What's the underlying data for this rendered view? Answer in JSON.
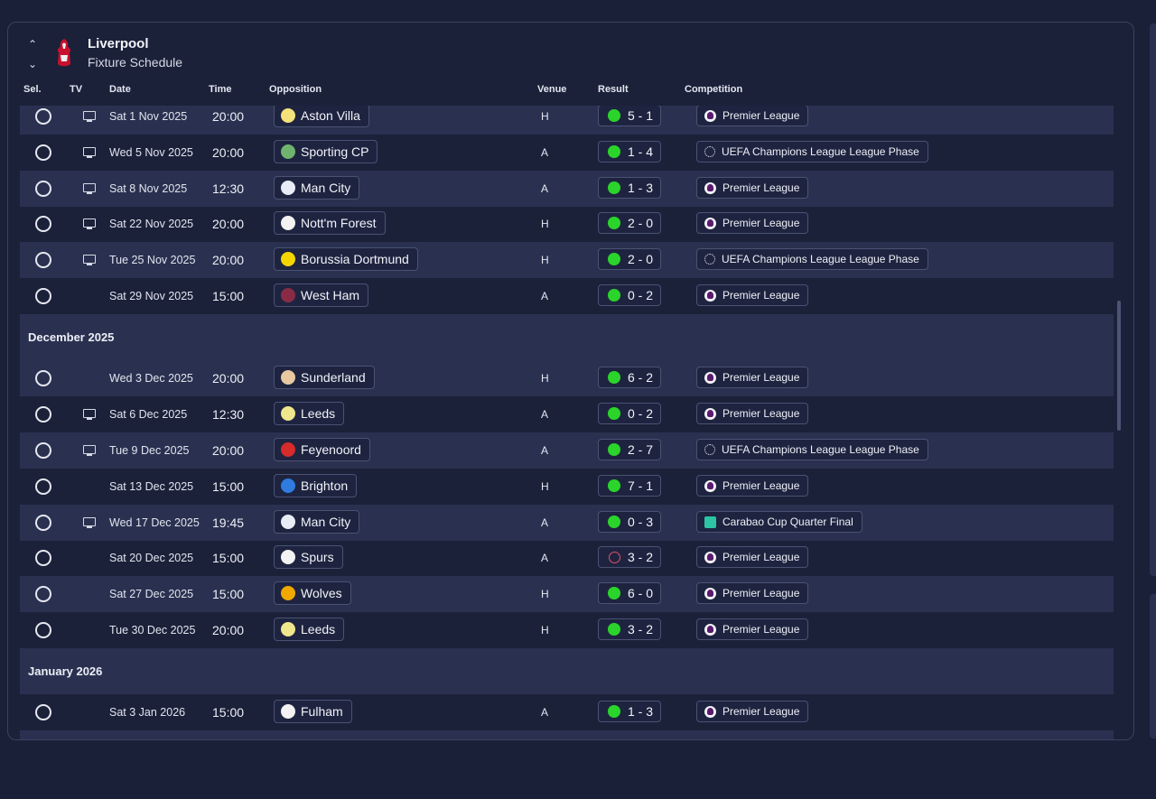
{
  "header": {
    "club_name": "Liverpool",
    "subtitle": "Fixture Schedule"
  },
  "columns": {
    "sel": "Sel.",
    "tv": "TV",
    "date": "Date",
    "time": "Time",
    "opposition": "Opposition",
    "venue": "Venue",
    "result": "Result",
    "competition": "Competition"
  },
  "months": {
    "december": "December 2025",
    "january": "January 2026"
  },
  "colors": {
    "win": "#2bd42b",
    "loss": "#e0506a",
    "background": "#1a2038",
    "row_alt": "#2a3150"
  },
  "fixtures": [
    {
      "tv": true,
      "date": "Sat 1 Nov 2025",
      "time": "20:00",
      "opposition": "Aston Villa",
      "venue": "H",
      "result": "5 - 1",
      "outcome": "win",
      "competition": "Premier League",
      "comp_icon": "premier-league-icon",
      "crest": "#f4e27a"
    },
    {
      "tv": true,
      "date": "Wed 5 Nov 2025",
      "time": "20:00",
      "opposition": "Sporting CP",
      "venue": "A",
      "result": "1 - 4",
      "outcome": "win",
      "competition": "UEFA Champions League League Phase",
      "comp_icon": "champions-league-icon",
      "crest": "#6fb36f"
    },
    {
      "tv": true,
      "date": "Sat 8 Nov 2025",
      "time": "12:30",
      "opposition": "Man City",
      "venue": "A",
      "result": "1 - 3",
      "outcome": "win",
      "competition": "Premier League",
      "comp_icon": "premier-league-icon",
      "crest": "#e8ecf4"
    },
    {
      "tv": true,
      "date": "Sat 22 Nov 2025",
      "time": "20:00",
      "opposition": "Nott'm Forest",
      "venue": "H",
      "result": "2 - 0",
      "outcome": "win",
      "competition": "Premier League",
      "comp_icon": "premier-league-icon",
      "crest": "#f2f2f2"
    },
    {
      "tv": true,
      "date": "Tue 25 Nov 2025",
      "time": "20:00",
      "opposition": "Borussia Dortmund",
      "venue": "H",
      "result": "2 - 0",
      "outcome": "win",
      "competition": "UEFA Champions League League Phase",
      "comp_icon": "champions-league-icon",
      "crest": "#f4d500"
    },
    {
      "tv": false,
      "date": "Sat 29 Nov 2025",
      "time": "15:00",
      "opposition": "West Ham",
      "venue": "A",
      "result": "0 - 2",
      "outcome": "win",
      "competition": "Premier League",
      "comp_icon": "premier-league-icon",
      "crest": "#8a2b45"
    },
    {
      "tv": false,
      "date": "Wed 3 Dec 2025",
      "time": "20:00",
      "opposition": "Sunderland",
      "venue": "H",
      "result": "6 - 2",
      "outcome": "win",
      "competition": "Premier League",
      "comp_icon": "premier-league-icon",
      "crest": "#e8c9a0"
    },
    {
      "tv": true,
      "date": "Sat 6 Dec 2025",
      "time": "12:30",
      "opposition": "Leeds",
      "venue": "A",
      "result": "0 - 2",
      "outcome": "win",
      "competition": "Premier League",
      "comp_icon": "premier-league-icon",
      "crest": "#f0e68c"
    },
    {
      "tv": true,
      "date": "Tue 9 Dec 2025",
      "time": "20:00",
      "opposition": "Feyenoord",
      "venue": "A",
      "result": "2 - 7",
      "outcome": "win",
      "competition": "UEFA Champions League League Phase",
      "comp_icon": "champions-league-icon",
      "crest": "#d62b2b"
    },
    {
      "tv": false,
      "date": "Sat 13 Dec 2025",
      "time": "15:00",
      "opposition": "Brighton",
      "venue": "H",
      "result": "7 - 1",
      "outcome": "win",
      "competition": "Premier League",
      "comp_icon": "premier-league-icon",
      "crest": "#2f7be0"
    },
    {
      "tv": true,
      "date": "Wed 17 Dec 2025",
      "time": "19:45",
      "opposition": "Man City",
      "venue": "A",
      "result": "0 - 3",
      "outcome": "win",
      "competition": "Carabao Cup Quarter Final",
      "comp_icon": "carabao-cup-icon",
      "crest": "#e8ecf4"
    },
    {
      "tv": false,
      "date": "Sat 20 Dec 2025",
      "time": "15:00",
      "opposition": "Spurs",
      "venue": "A",
      "result": "3 - 2",
      "outcome": "loss",
      "competition": "Premier League",
      "comp_icon": "premier-league-icon",
      "crest": "#f2f2f2"
    },
    {
      "tv": false,
      "date": "Sat 27 Dec 2025",
      "time": "15:00",
      "opposition": "Wolves",
      "venue": "H",
      "result": "6 - 0",
      "outcome": "win",
      "competition": "Premier League",
      "comp_icon": "premier-league-icon",
      "crest": "#f0a800"
    },
    {
      "tv": false,
      "date": "Tue 30 Dec 2025",
      "time": "20:00",
      "opposition": "Leeds",
      "venue": "H",
      "result": "3 - 2",
      "outcome": "win",
      "competition": "Premier League",
      "comp_icon": "premier-league-icon",
      "crest": "#f0e68c"
    },
    {
      "tv": false,
      "date": "Sat 3 Jan 2026",
      "time": "15:00",
      "opposition": "Fulham",
      "venue": "A",
      "result": "1 - 3",
      "outcome": "win",
      "competition": "Premier League",
      "comp_icon": "premier-league-icon",
      "crest": "#f2f2f2"
    }
  ]
}
